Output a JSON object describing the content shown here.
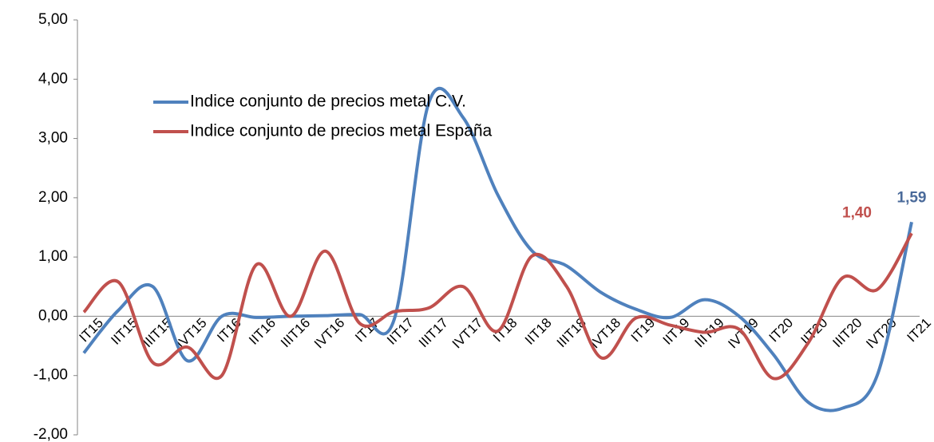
{
  "chart_data": {
    "type": "line",
    "categories": [
      "IT15",
      "IIT15",
      "IIIT15",
      "IVT15",
      "IT16",
      "IIT16",
      "IIIT16",
      "IVT16",
      "IT17",
      "IIT17",
      "IIIT17",
      "IVT17",
      "IT18",
      "IIT18",
      "IIIT18",
      "IVT18",
      "IT19",
      "IIT19",
      "IIIT19",
      "IVT19",
      "IT20",
      "IIT20",
      "IIIT20",
      "IVT20",
      "IT21"
    ],
    "series": [
      {
        "name": "Indice conjunto de precios metal C.V.",
        "color": "#4f81bd",
        "values": [
          -0.62,
          0.1,
          0.5,
          -0.75,
          0.0,
          -0.02,
          0.0,
          0.01,
          0.03,
          -0.05,
          3.6,
          3.35,
          2.05,
          1.1,
          0.85,
          0.4,
          0.12,
          -0.02,
          0.28,
          0.0,
          -0.65,
          -1.45,
          -1.55,
          -1.0,
          1.59
        ],
        "value_labels": [
          null,
          null,
          null,
          null,
          null,
          null,
          null,
          null,
          null,
          null,
          null,
          null,
          null,
          null,
          null,
          null,
          null,
          null,
          null,
          null,
          null,
          null,
          null,
          null,
          "1,59"
        ]
      },
      {
        "name": "Indice conjunto de precios metal España",
        "color": "#c0504d",
        "values": [
          0.07,
          0.58,
          -0.78,
          -0.52,
          -1.0,
          0.87,
          0.0,
          1.1,
          -0.12,
          0.08,
          0.14,
          0.5,
          -0.25,
          1.02,
          0.5,
          -0.7,
          -0.03,
          -0.15,
          -0.27,
          -0.22,
          -1.05,
          -0.45,
          0.65,
          0.45,
          1.4
        ],
        "value_labels": [
          null,
          null,
          null,
          null,
          null,
          null,
          null,
          null,
          null,
          null,
          null,
          null,
          null,
          null,
          null,
          null,
          null,
          null,
          null,
          null,
          null,
          null,
          null,
          null,
          "1,40"
        ]
      }
    ],
    "ylim": [
      -2,
      5
    ],
    "yticks": [
      {
        "value": -2,
        "label": "-2,00"
      },
      {
        "value": -1,
        "label": "-1,00"
      },
      {
        "value": 0,
        "label": "0,00"
      },
      {
        "value": 1,
        "label": "1,00"
      },
      {
        "value": 2,
        "label": "2,00"
      },
      {
        "value": 3,
        "label": "3,00"
      },
      {
        "value": 4,
        "label": "4,00"
      },
      {
        "value": 5,
        "label": "5,00"
      }
    ],
    "grid": false,
    "legend": "upper left"
  }
}
